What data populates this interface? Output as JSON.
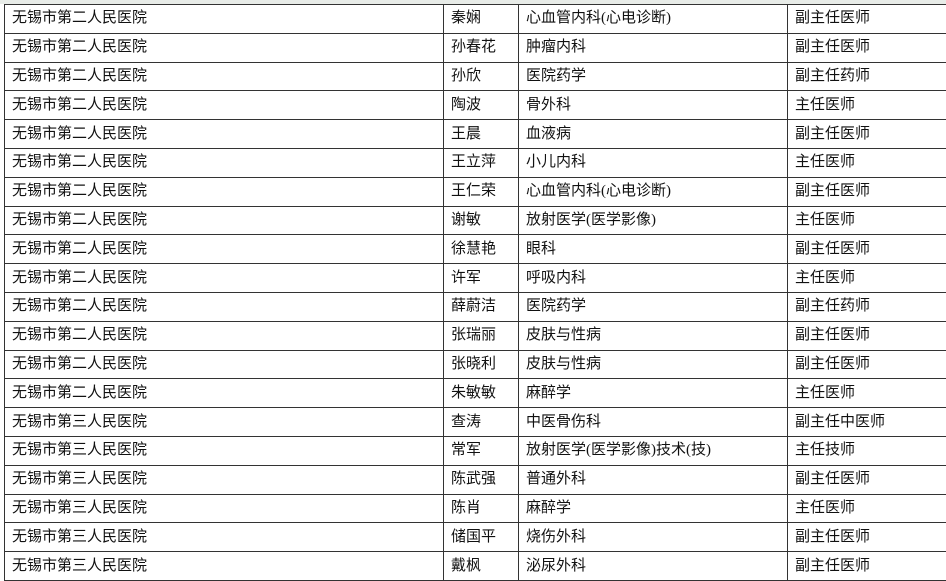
{
  "rows": [
    {
      "hospital": "无锡市第二人民医院",
      "name": "秦娴",
      "department": "心血管内科(心电诊断)",
      "title": "副主任医师"
    },
    {
      "hospital": "无锡市第二人民医院",
      "name": "孙春花",
      "department": "肿瘤内科",
      "title": "副主任医师"
    },
    {
      "hospital": "无锡市第二人民医院",
      "name": "孙欣",
      "department": "医院药学",
      "title": "副主任药师"
    },
    {
      "hospital": "无锡市第二人民医院",
      "name": "陶波",
      "department": "骨外科",
      "title": "主任医师"
    },
    {
      "hospital": "无锡市第二人民医院",
      "name": "王晨",
      "department": "血液病",
      "title": "副主任医师"
    },
    {
      "hospital": "无锡市第二人民医院",
      "name": "王立萍",
      "department": "小儿内科",
      "title": "主任医师"
    },
    {
      "hospital": "无锡市第二人民医院",
      "name": "王仁荣",
      "department": "心血管内科(心电诊断)",
      "title": "副主任医师"
    },
    {
      "hospital": "无锡市第二人民医院",
      "name": "谢敏",
      "department": "放射医学(医学影像)",
      "title": "主任医师"
    },
    {
      "hospital": "无锡市第二人民医院",
      "name": "徐慧艳",
      "department": "眼科",
      "title": "副主任医师"
    },
    {
      "hospital": "无锡市第二人民医院",
      "name": "许军",
      "department": "呼吸内科",
      "title": "主任医师"
    },
    {
      "hospital": "无锡市第二人民医院",
      "name": "薛蔚洁",
      "department": "医院药学",
      "title": "副主任药师"
    },
    {
      "hospital": "无锡市第二人民医院",
      "name": "张瑞丽",
      "department": "皮肤与性病",
      "title": "副主任医师"
    },
    {
      "hospital": "无锡市第二人民医院",
      "name": "张晓利",
      "department": "皮肤与性病",
      "title": "副主任医师"
    },
    {
      "hospital": "无锡市第二人民医院",
      "name": "朱敏敏",
      "department": "麻醉学",
      "title": "主任医师"
    },
    {
      "hospital": "无锡市第三人民医院",
      "name": "查涛",
      "department": "中医骨伤科",
      "title": "副主任中医师"
    },
    {
      "hospital": "无锡市第三人民医院",
      "name": "常军",
      "department": "放射医学(医学影像)技术(技)",
      "title": "主任技师"
    },
    {
      "hospital": "无锡市第三人民医院",
      "name": "陈武强",
      "department": "普通外科",
      "title": "副主任医师"
    },
    {
      "hospital": "无锡市第三人民医院",
      "name": "陈肖",
      "department": "麻醉学",
      "title": "主任医师"
    },
    {
      "hospital": "无锡市第三人民医院",
      "name": "储国平",
      "department": "烧伤外科",
      "title": "副主任医师"
    },
    {
      "hospital": "无锡市第三人民医院",
      "name": "戴枫",
      "department": "泌尿外科",
      "title": "副主任医师"
    }
  ]
}
